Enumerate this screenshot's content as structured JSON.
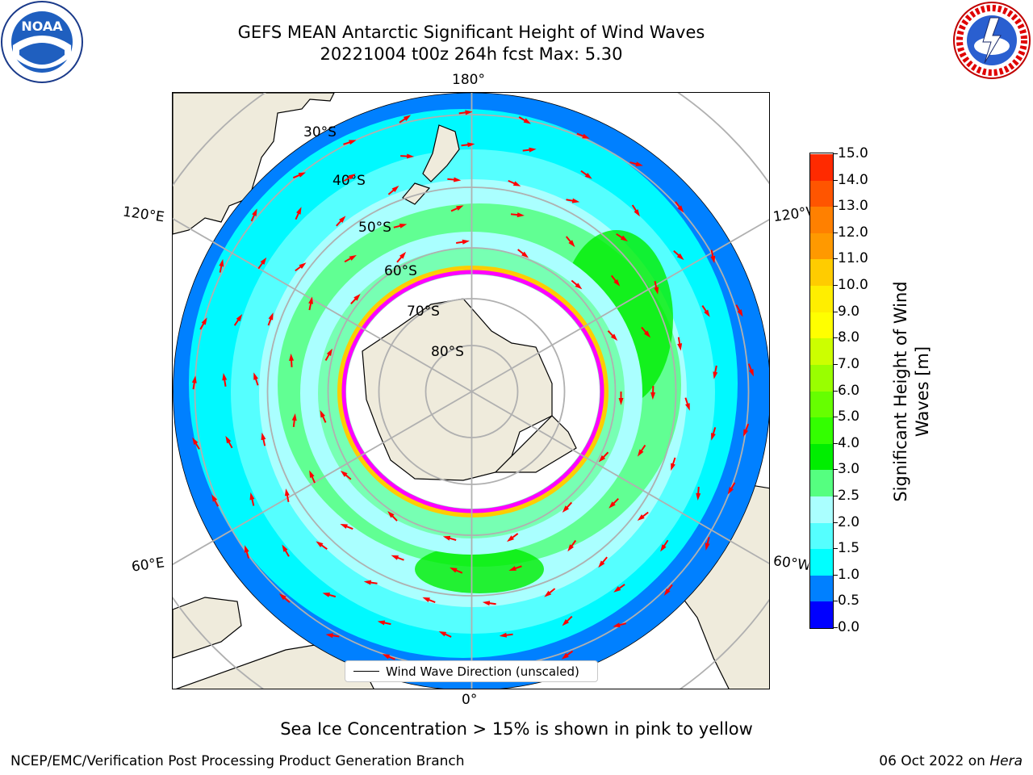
{
  "title": {
    "line1": "GEFS MEAN Antarctic Significant Height of Wind Waves",
    "line2": "20221004 t00z 264h fcst   Max: 5.30"
  },
  "logos": {
    "left": "noaa-logo",
    "right": "nws-logo",
    "left_text": "NOAA"
  },
  "map": {
    "projection": "south-polar-stereographic",
    "longitude_labels": {
      "top": "180°",
      "bottom": "0°",
      "left_upper": "120°E",
      "left_lower": "60°E",
      "right_upper": "120°W",
      "right_lower": "60°W"
    },
    "latitude_labels": [
      "30°S",
      "40°S",
      "50°S",
      "60°S",
      "70°S",
      "80°S"
    ],
    "legend_label": "Wind Wave Direction (unscaled)",
    "arrow_color": "#ff0000",
    "sea_ice_colors": [
      "#ff00ff",
      "#ffcc00"
    ],
    "land_color": "#efebdc",
    "ocean_levels": [
      {
        "level_m": 0.5,
        "color": "#0000ff"
      },
      {
        "level_m": 1.0,
        "color": "#0080ff"
      },
      {
        "level_m": 1.5,
        "color": "#00ffff"
      },
      {
        "level_m": 2.0,
        "color": "#55ffff"
      },
      {
        "level_m": 2.5,
        "color": "#aaffff"
      },
      {
        "level_m": 3.0,
        "color": "#55ff80"
      },
      {
        "level_m": 4.0,
        "color": "#00ee00"
      }
    ]
  },
  "colorbar": {
    "label": "Significant Height of Wind Waves [m]",
    "ticks": [
      "0.0",
      "0.5",
      "1.0",
      "1.5",
      "2.0",
      "2.5",
      "3.0",
      "4.0",
      "5.0",
      "6.0",
      "7.0",
      "8.0",
      "9.0",
      "10.0",
      "11.0",
      "12.0",
      "13.0",
      "14.0",
      "15.0"
    ],
    "colors": [
      "#0000ff",
      "#0080ff",
      "#00ffff",
      "#55ffff",
      "#aaffff",
      "#55ff80",
      "#00ee00",
      "#33ff00",
      "#66ff00",
      "#99ff00",
      "#ccff00",
      "#ffff00",
      "#ffee00",
      "#ffcc00",
      "#ff9900",
      "#ff8000",
      "#ff5500",
      "#ff2a00",
      "#ff0000"
    ]
  },
  "sea_ice_note": "Sea Ice Concentration > 15% is shown in pink to yellow",
  "footer": {
    "left": "NCEP/EMC/Verification Post Processing Product Generation Branch",
    "right_date": "06 Oct 2022 on",
    "right_host": "Hera"
  }
}
